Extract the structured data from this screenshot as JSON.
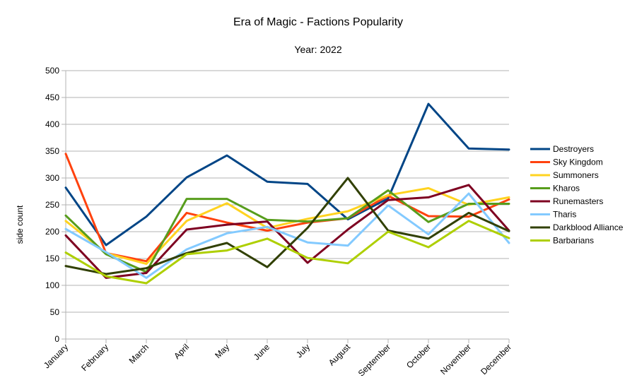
{
  "chart_data": {
    "type": "line",
    "title": "Era of Magic - Factions Popularity",
    "subtitle": "Year: 2022",
    "xlabel": "",
    "ylabel": "side count",
    "ylim": [
      0,
      500
    ],
    "yticks": [
      0,
      50,
      100,
      150,
      200,
      250,
      300,
      350,
      400,
      450,
      500
    ],
    "grid": "horizontal",
    "legend_position": "right",
    "categories": [
      "January",
      "February",
      "March",
      "April",
      "May",
      "June",
      "July",
      "August",
      "September",
      "October",
      "November",
      "December"
    ],
    "series": [
      {
        "name": "Destroyers",
        "color": "#004586",
        "values": [
          282,
          175,
          228,
          301,
          342,
          293,
          289,
          223,
          262,
          438,
          355,
          353
        ]
      },
      {
        "name": "Sky Kingdom",
        "color": "#ff420e",
        "values": [
          345,
          160,
          145,
          235,
          217,
          202,
          217,
          225,
          267,
          229,
          228,
          260
        ]
      },
      {
        "name": "Summoners",
        "color": "#ffd320",
        "values": [
          220,
          160,
          140,
          220,
          253,
          207,
          224,
          238,
          268,
          281,
          250,
          264
        ]
      },
      {
        "name": "Kharos",
        "color": "#579d1c",
        "values": [
          230,
          158,
          125,
          261,
          261,
          222,
          219,
          225,
          277,
          218,
          252,
          252
        ]
      },
      {
        "name": "Runemasters",
        "color": "#7e0021",
        "values": [
          193,
          114,
          123,
          204,
          213,
          219,
          142,
          204,
          259,
          264,
          287,
          202
        ]
      },
      {
        "name": "Tharis",
        "color": "#83caff",
        "values": [
          205,
          162,
          114,
          167,
          197,
          209,
          180,
          174,
          249,
          195,
          271,
          179
        ]
      },
      {
        "name": "Darkblood Alliance",
        "color": "#314004",
        "values": [
          136,
          121,
          132,
          160,
          179,
          134,
          207,
          300,
          202,
          187,
          235,
          201
        ]
      },
      {
        "name": "Barbarians",
        "color": "#aecf00",
        "values": [
          161,
          117,
          104,
          158,
          165,
          187,
          151,
          141,
          200,
          171,
          220,
          188
        ]
      }
    ]
  }
}
